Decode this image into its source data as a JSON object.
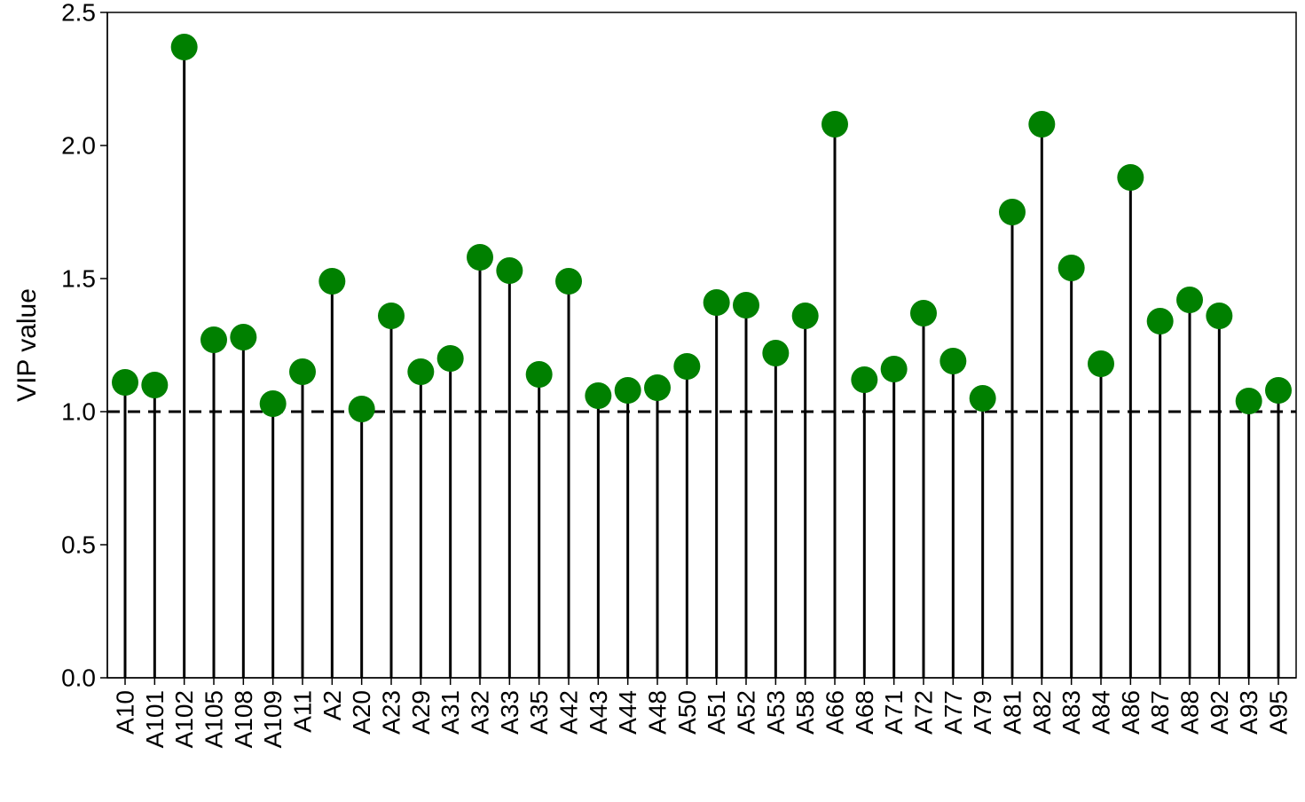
{
  "chart_data": {
    "type": "lollipop",
    "title": "",
    "xlabel": "",
    "ylabel": "VIP value",
    "ylim": [
      0,
      2.5
    ],
    "yticks": [
      "0.0",
      "0.5",
      "1.0",
      "1.5",
      "2.0",
      "2.5"
    ],
    "threshold": 1.0,
    "grid": false,
    "colors": {
      "point": "#008000",
      "stem": "#000000",
      "threshold": "#000000"
    },
    "categories": [
      "A10",
      "A101",
      "A102",
      "A105",
      "A108",
      "A109",
      "A11",
      "A2",
      "A20",
      "A23",
      "A29",
      "A31",
      "A32",
      "A33",
      "A35",
      "A42",
      "A43",
      "A44",
      "A48",
      "A50",
      "A51",
      "A52",
      "A53",
      "A58",
      "A66",
      "A68",
      "A71",
      "A72",
      "A77",
      "A79",
      "A81",
      "A82",
      "A83",
      "A84",
      "A86",
      "A87",
      "A88",
      "A92",
      "A93",
      "A95"
    ],
    "values": [
      1.11,
      1.1,
      2.37,
      1.27,
      1.28,
      1.03,
      1.15,
      1.49,
      1.01,
      1.36,
      1.15,
      1.2,
      1.58,
      1.53,
      1.14,
      1.49,
      1.06,
      1.08,
      1.09,
      1.17,
      1.41,
      1.4,
      1.22,
      1.36,
      2.08,
      1.12,
      1.16,
      1.37,
      1.19,
      1.05,
      1.75,
      2.08,
      1.54,
      1.18,
      1.88,
      1.34,
      1.42,
      1.36,
      1.04,
      1.08
    ]
  }
}
